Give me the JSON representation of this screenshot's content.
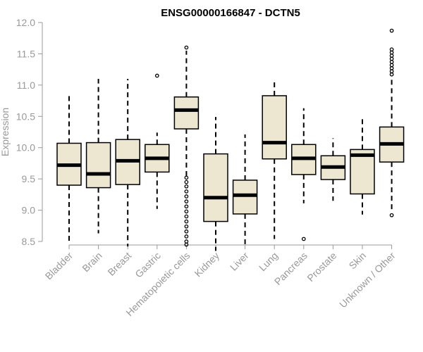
{
  "chart_data": {
    "type": "boxplot",
    "title": "ENSG00000166847 - DCTN5",
    "xlabel": "",
    "ylabel": "Expression",
    "ylim": [
      8.45,
      12.0
    ],
    "yticks": [
      "8.5",
      "9.0",
      "9.5",
      "10.0",
      "10.5",
      "11.0",
      "11.5",
      "12.0"
    ],
    "colors": {
      "box_fill": "#ede7d1",
      "box_stroke": "#000000",
      "median": "#000000",
      "axis": "#999999"
    },
    "categories": [
      "Bladder",
      "Brain",
      "Breast",
      "Gastric",
      "Hematopoietic cells",
      "Kidney",
      "Liver",
      "Lung",
      "Pancreas",
      "Prostate",
      "Skin",
      "Unknown / Other"
    ],
    "boxes": [
      {
        "category": "Bladder",
        "whisker_low": 8.5,
        "q1": 9.4,
        "median": 9.72,
        "q3": 10.07,
        "whisker_high": 10.86,
        "outliers": []
      },
      {
        "category": "Brain",
        "whisker_low": 8.63,
        "q1": 9.36,
        "median": 9.58,
        "q3": 10.08,
        "whisker_high": 11.1,
        "outliers": []
      },
      {
        "category": "Breast",
        "whisker_low": 8.42,
        "q1": 9.41,
        "median": 9.79,
        "q3": 10.13,
        "whisker_high": 11.1,
        "outliers": []
      },
      {
        "category": "Gastric",
        "whisker_low": 9.02,
        "q1": 9.61,
        "median": 9.83,
        "q3": 10.05,
        "whisker_high": 10.24,
        "outliers": [
          11.15
        ]
      },
      {
        "category": "Hematopoietic cells",
        "whisker_low": 9.55,
        "q1": 10.3,
        "median": 10.6,
        "q3": 10.81,
        "whisker_high": 11.55,
        "outliers": [
          11.6,
          9.52,
          9.45,
          9.38,
          9.3,
          9.22,
          9.14,
          9.06,
          8.98,
          8.9,
          8.82,
          8.74,
          8.66,
          8.58,
          8.5,
          8.45
        ]
      },
      {
        "category": "Kidney",
        "whisker_low": 8.35,
        "q1": 8.82,
        "median": 9.2,
        "q3": 9.9,
        "whisker_high": 10.49,
        "outliers": []
      },
      {
        "category": "Liver",
        "whisker_low": 8.44,
        "q1": 8.94,
        "median": 9.24,
        "q3": 9.48,
        "whisker_high": 10.21,
        "outliers": []
      },
      {
        "category": "Lung",
        "whisker_low": 8.54,
        "q1": 9.82,
        "median": 10.08,
        "q3": 10.83,
        "whisker_high": 11.1,
        "outliers": []
      },
      {
        "category": "Pancreas",
        "whisker_low": 9.11,
        "q1": 9.57,
        "median": 9.83,
        "q3": 10.05,
        "whisker_high": 10.63,
        "outliers": [
          8.54
        ]
      },
      {
        "category": "Prostate",
        "whisker_low": 9.15,
        "q1": 9.49,
        "median": 9.69,
        "q3": 9.87,
        "whisker_high": 10.15,
        "outliers": []
      },
      {
        "category": "Skin",
        "whisker_low": 8.93,
        "q1": 9.26,
        "median": 9.88,
        "q3": 9.97,
        "whisker_high": 10.5,
        "outliers": []
      },
      {
        "category": "Unknown / Other",
        "whisker_low": 8.98,
        "q1": 9.77,
        "median": 10.06,
        "q3": 10.33,
        "whisker_high": 11.12,
        "outliers": [
          11.87,
          11.57,
          11.52,
          11.47,
          11.42,
          11.37,
          11.32,
          11.27,
          11.22,
          11.17,
          8.92
        ]
      }
    ]
  }
}
